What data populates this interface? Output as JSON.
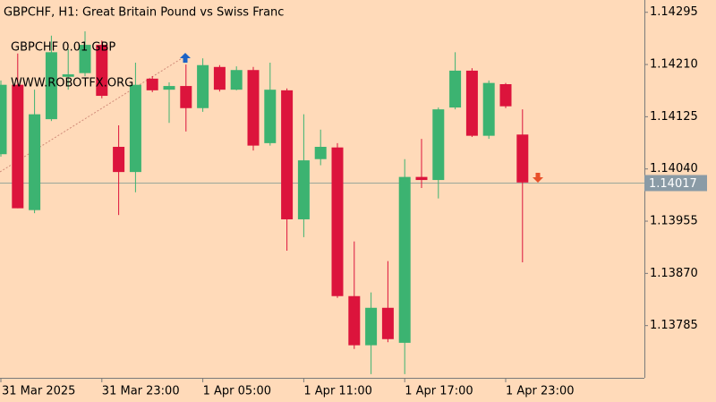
{
  "chart_data": {
    "type": "candlestick",
    "title": "GBPCHF, H1:  Great Britain Pound vs Swiss Franc",
    "annotations": [
      "GBPCHF 0.01 GBP",
      "WWW.ROBOTFX.ORG"
    ],
    "categories": [
      "31 Mar 2025",
      null,
      null,
      null,
      null,
      null,
      "31 Mar 23:00",
      null,
      null,
      null,
      null,
      null,
      "1 Apr 05:00",
      null,
      null,
      null,
      null,
      null,
      "1 Apr 11:00",
      null,
      null,
      null,
      null,
      null,
      "1 Apr 17:00",
      null,
      null,
      null,
      null,
      null,
      "1 Apr 23:00",
      null
    ],
    "open": [
      1.14064,
      1.14177,
      1.13973,
      1.14121,
      1.1419,
      1.14196,
      1.14242,
      1.14076,
      1.14035,
      1.14187,
      1.14169,
      1.14175,
      1.14139,
      1.14206,
      1.14169,
      1.14201,
      1.14082,
      1.14168,
      1.13958,
      1.14056,
      1.14075,
      1.13833,
      1.13753,
      1.13814,
      1.13757,
      1.14027,
      1.14022,
      1.1414,
      1.142,
      1.14094,
      1.14178,
      1.14096
    ],
    "high": [
      1.14184,
      1.14228,
      1.14169,
      1.14257,
      1.14235,
      1.14264,
      1.14249,
      1.14111,
      1.14213,
      1.14191,
      1.14181,
      1.1421,
      1.1422,
      1.14209,
      1.14207,
      1.14206,
      1.14213,
      1.14171,
      1.14129,
      1.14104,
      1.14082,
      1.13922,
      1.13839,
      1.1389,
      1.14056,
      1.14089,
      1.1414,
      1.1423,
      1.14204,
      1.14184,
      1.1418,
      1.14137
    ],
    "low": [
      1.1406,
      1.13976,
      1.13968,
      1.14118,
      1.14169,
      1.14191,
      1.14155,
      1.13965,
      1.14002,
      1.14165,
      1.14115,
      1.14101,
      1.14133,
      1.14166,
      1.14168,
      1.1407,
      1.14078,
      1.13907,
      1.13929,
      1.14046,
      1.1383,
      1.13747,
      1.13706,
      1.13758,
      1.13706,
      1.14009,
      1.13992,
      1.14137,
      1.14092,
      1.14089,
      1.14139,
      1.13888
    ],
    "close": [
      1.14177,
      1.13976,
      1.14129,
      1.1423,
      1.14194,
      1.14242,
      1.14159,
      1.14035,
      1.14177,
      1.14168,
      1.14175,
      1.14139,
      1.14209,
      1.14169,
      1.14201,
      1.14078,
      1.14169,
      1.13958,
      1.14054,
      1.14076,
      1.13833,
      1.13753,
      1.13814,
      1.13763,
      1.14027,
      1.14022,
      1.14137,
      1.142,
      1.14094,
      1.1418,
      1.14142,
      1.14018
    ],
    "up_color": "#3cb371",
    "down_color": "#dc143c",
    "current_price": 1.14017,
    "ylim": [
      1.137,
      1.14315
    ],
    "yticks": [
      1.14295,
      {
        "value": 1.1421,
        "label": "1.14210"
      },
      1.14125,
      {
        "value": 1.1404,
        "label": "1.14040"
      },
      1.13955,
      {
        "value": 1.1387,
        "label": "1.13870"
      },
      1.13785
    ],
    "grid": false
  }
}
